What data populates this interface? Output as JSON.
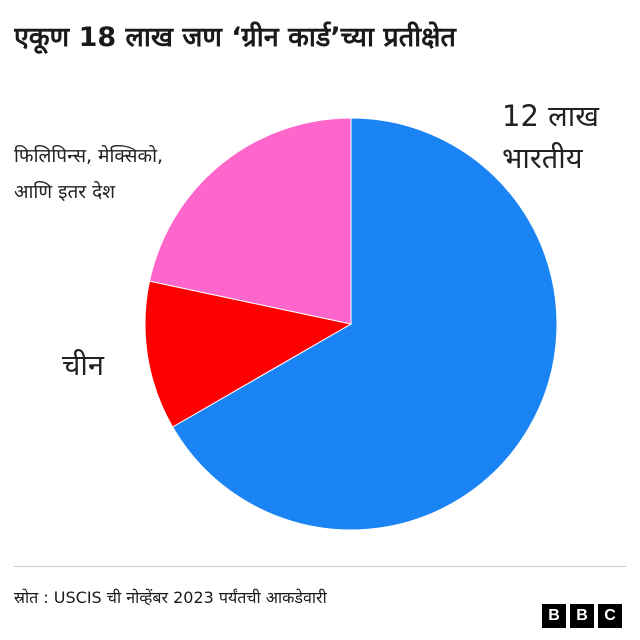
{
  "title": "एकूण 18 लाख जण ‘ग्रीन कार्ड’च्या प्रतीक्षेत",
  "source": "स्रोत : USCIS ची नोव्हेंबर 2023 पर्यंतची आकडेवारी",
  "logo": [
    "B",
    "B",
    "C"
  ],
  "colors": {
    "india": "#1a84f4",
    "china": "#ff0000",
    "others": "#ff66cc"
  },
  "labels": {
    "india_line1": "12 लाख",
    "india_line2": "भारतीय",
    "china": "चीन",
    "others_line1": "फिलिपिन्स, मेक्सिको,",
    "others_line2": "आणि इतर देश"
  },
  "chart_data": {
    "type": "pie",
    "title": "एकूण 18 लाख जण ‘ग्रीन कार्ड’च्या प्रतीक्षेत",
    "total": 1800000,
    "slices": [
      {
        "name": "भारतीय",
        "value": 1200000,
        "color": "#1a84f4"
      },
      {
        "name": "चीन",
        "value": 210000,
        "color": "#ff0000"
      },
      {
        "name": "फिलिपिन्स, मेक्सिको, आणि इतर देश",
        "value": 390000,
        "color": "#ff66cc"
      }
    ]
  }
}
